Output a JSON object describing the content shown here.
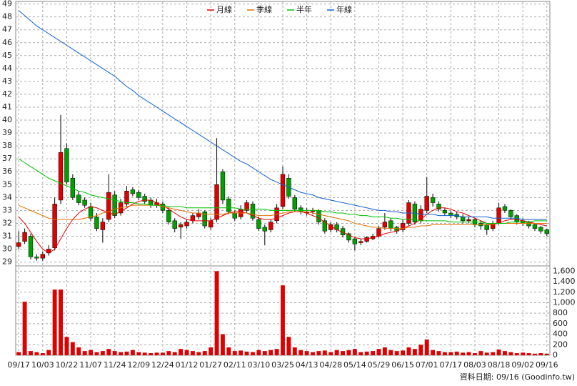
{
  "chart_data": [
    {
      "type": "candlestick",
      "legend": "top",
      "grid": true,
      "up_color": "#e00000",
      "down_color": "#00a000",
      "categories": [
        "09/17",
        null,
        null,
        null,
        "10/03",
        null,
        null,
        null,
        "10/22",
        null,
        null,
        null,
        "11/07",
        null,
        null,
        null,
        "11/24",
        null,
        null,
        null,
        "12/09",
        null,
        null,
        null,
        "12/24",
        null,
        null,
        null,
        "01/12",
        null,
        null,
        null,
        "01/27",
        null,
        null,
        null,
        "02/11",
        null,
        null,
        null,
        "03/10",
        null,
        null,
        null,
        "03/25",
        null,
        null,
        null,
        "04/13",
        null,
        null,
        null,
        "04/28",
        null,
        null,
        null,
        "05/14",
        null,
        null,
        null,
        "05/29",
        null,
        null,
        null,
        "06/15",
        null,
        null,
        null,
        "07/01",
        null,
        null,
        null,
        "07/17",
        null,
        null,
        null,
        "08/03",
        null,
        null,
        null,
        "08/18",
        null,
        null,
        null,
        "09/02",
        null,
        null,
        null,
        "09/16"
      ],
      "open": [
        30.2,
        30.6,
        31.0,
        29.4,
        29.3,
        29.7,
        30.1,
        33.8,
        37.8,
        35.5,
        34.2,
        33.8,
        33.3,
        32.5,
        31.5,
        32.3,
        34.2,
        32.8,
        33.5,
        34.6,
        34.4,
        34.1,
        33.8,
        33.4,
        33.5,
        33.0,
        32.2,
        31.7,
        31.8,
        32.2,
        32.5,
        32.9,
        31.7,
        32.3,
        36.0,
        33.9,
        32.8,
        32.5,
        33.0,
        33.5,
        32.3,
        31.7,
        31.5,
        32.2,
        33.3,
        35.5,
        34.0,
        33.2,
        32.8,
        32.9,
        33.0,
        32.2,
        31.5,
        31.9,
        31.6,
        31.2,
        30.8,
        30.5,
        30.6,
        30.8,
        31.0,
        31.7,
        32.2,
        31.7,
        31.5,
        32.0,
        33.5,
        32.2,
        33.0,
        34.0,
        33.5,
        33.0,
        32.8,
        32.7,
        32.5,
        32.2,
        32.3,
        32.0,
        31.9,
        31.6,
        32.0,
        33.3,
        33.0,
        32.6,
        32.2,
        32.1,
        31.9,
        31.7,
        31.5
      ],
      "high": [
        31.4,
        31.6,
        31.2,
        29.6,
        29.8,
        30.3,
        34.0,
        40.4,
        38.2,
        35.8,
        34.5,
        34.0,
        33.6,
        32.8,
        32.4,
        35.8,
        34.5,
        33.9,
        34.9,
        34.8,
        34.6,
        34.3,
        34.0,
        33.9,
        33.7,
        33.2,
        32.4,
        32.1,
        32.3,
        32.8,
        33.1,
        33.0,
        32.4,
        38.6,
        36.2,
        34.1,
        33.0,
        33.4,
        33.8,
        33.7,
        32.5,
        31.9,
        32.3,
        33.5,
        36.4,
        35.8,
        34.2,
        33.4,
        33.2,
        33.2,
        33.1,
        32.4,
        32.1,
        32.1,
        31.8,
        31.3,
        30.9,
        30.8,
        31.0,
        31.2,
        31.8,
        32.8,
        32.4,
        31.8,
        32.3,
        33.8,
        33.7,
        33.4,
        35.6,
        34.3,
        33.7,
        33.2,
        33.0,
        32.9,
        32.7,
        32.5,
        32.4,
        32.2,
        32.0,
        32.2,
        33.6,
        33.5,
        33.1,
        32.7,
        32.4,
        32.2,
        32.0,
        31.8,
        31.6
      ],
      "low": [
        30.0,
        30.4,
        29.2,
        29.1,
        29.1,
        29.5,
        29.9,
        33.5,
        35.0,
        33.8,
        33.4,
        33.2,
        32.2,
        31.4,
        30.5,
        32.1,
        32.4,
        32.6,
        33.3,
        34.1,
        33.8,
        33.5,
        33.2,
        33.2,
        32.8,
        31.9,
        31.3,
        30.8,
        31.6,
        32.0,
        32.3,
        31.6,
        31.5,
        32.1,
        33.5,
        32.7,
        32.2,
        32.3,
        32.8,
        32.2,
        31.4,
        30.3,
        31.3,
        32.0,
        33.1,
        33.9,
        32.9,
        32.7,
        32.6,
        32.7,
        31.9,
        31.2,
        31.3,
        31.3,
        30.9,
        30.5,
        29.9,
        30.3,
        30.5,
        30.7,
        30.9,
        31.5,
        31.4,
        31.2,
        31.3,
        31.8,
        31.9,
        32.0,
        32.8,
        33.3,
        32.9,
        32.6,
        32.4,
        32.3,
        32.0,
        32.0,
        31.7,
        31.5,
        31.1,
        31.4,
        31.9,
        32.8,
        32.3,
        31.9,
        31.8,
        31.6,
        31.4,
        31.2,
        31.0
      ],
      "close": [
        30.5,
        31.3,
        29.4,
        29.3,
        29.6,
        30.0,
        33.5,
        37.5,
        35.2,
        34.0,
        33.6,
        33.4,
        32.4,
        31.6,
        32.1,
        34.4,
        32.6,
        33.6,
        34.5,
        34.3,
        34.0,
        33.7,
        33.4,
        33.6,
        33.0,
        32.1,
        31.6,
        31.9,
        32.1,
        32.6,
        32.8,
        31.8,
        32.2,
        35.0,
        33.8,
        32.9,
        32.4,
        33.1,
        33.6,
        32.4,
        31.6,
        31.4,
        32.1,
        33.2,
        35.8,
        34.1,
        33.1,
        32.9,
        32.9,
        33.0,
        32.1,
        31.4,
        31.9,
        31.5,
        31.1,
        30.7,
        30.4,
        30.6,
        30.9,
        31.0,
        31.6,
        32.1,
        31.6,
        31.4,
        32.0,
        33.6,
        32.1,
        33.1,
        34.1,
        33.6,
        33.1,
        32.8,
        32.6,
        32.5,
        32.2,
        32.3,
        31.9,
        31.8,
        31.5,
        32.0,
        33.2,
        33.0,
        32.5,
        32.1,
        32.0,
        31.8,
        31.6,
        31.4,
        31.2
      ],
      "series": [
        {
          "name": "月線",
          "color": "#e00000",
          "values": [
            32.5,
            32.0,
            31.3,
            30.6,
            30.0,
            29.7,
            30.0,
            30.8,
            31.6,
            32.3,
            32.8,
            33.1,
            33.3,
            33.2,
            33.0,
            32.8,
            32.7,
            32.9,
            33.2,
            33.5,
            33.7,
            33.8,
            33.8,
            33.6,
            33.4,
            33.1,
            32.8,
            32.5,
            32.3,
            32.2,
            32.2,
            32.2,
            32.2,
            32.4,
            32.6,
            32.8,
            32.9,
            32.9,
            32.8,
            32.6,
            32.4,
            32.3,
            32.3,
            32.4,
            32.6,
            32.8,
            32.9,
            32.9,
            32.8,
            32.6,
            32.4,
            32.1,
            31.8,
            31.5,
            31.3,
            31.1,
            30.9,
            30.8,
            30.8,
            30.9,
            31.0,
            31.2,
            31.3,
            31.4,
            31.6,
            31.8,
            32.0,
            32.3,
            32.7,
            33.0,
            33.2,
            33.2,
            33.1,
            32.9,
            32.8,
            32.6,
            32.4,
            32.2,
            32.0,
            31.9,
            32.0,
            32.2,
            32.3,
            32.3,
            32.2,
            32.1,
            32.0,
            31.9,
            31.8
          ]
        },
        {
          "name": "季線",
          "color": "#e07000",
          "values": [
            33.4,
            33.2,
            33.0,
            32.8,
            32.6,
            32.4,
            32.3,
            32.3,
            32.3,
            32.3,
            32.3,
            32.4,
            32.5,
            32.6,
            32.8,
            32.9,
            33.1,
            33.2,
            33.3,
            33.4,
            33.4,
            33.4,
            33.4,
            33.4,
            33.3,
            33.2,
            33.1,
            33.0,
            32.9,
            32.8,
            32.8,
            32.7,
            32.7,
            32.7,
            32.7,
            32.8,
            32.8,
            32.8,
            32.8,
            32.7,
            32.6,
            32.6,
            32.6,
            32.7,
            32.8,
            32.9,
            32.9,
            32.9,
            32.9,
            32.8,
            32.7,
            32.6,
            32.5,
            32.4,
            32.3,
            32.2,
            32.0,
            31.9,
            31.8,
            31.7,
            31.7,
            31.6,
            31.6,
            31.6,
            31.6,
            31.7,
            31.7,
            31.8,
            31.8,
            31.9,
            31.9,
            31.9,
            31.9,
            31.9,
            31.9,
            31.9,
            31.9,
            31.9,
            31.9,
            31.9,
            32.0,
            32.0,
            32.0,
            32.0,
            32.0,
            32.0,
            32.0,
            32.0,
            32.0
          ]
        },
        {
          "name": "半年",
          "color": "#00c000",
          "values": [
            37.0,
            36.7,
            36.4,
            36.1,
            35.8,
            35.5,
            35.3,
            35.1,
            34.9,
            34.7,
            34.5,
            34.4,
            34.2,
            34.1,
            34.0,
            33.9,
            33.8,
            33.7,
            33.6,
            33.6,
            33.5,
            33.5,
            33.4,
            33.4,
            33.4,
            33.3,
            33.3,
            33.3,
            33.2,
            33.2,
            33.2,
            33.2,
            33.2,
            33.2,
            33.2,
            33.2,
            33.2,
            33.1,
            33.1,
            33.1,
            33.1,
            33.1,
            33.0,
            33.0,
            33.0,
            33.0,
            33.0,
            33.0,
            33.0,
            33.0,
            33.0,
            32.9,
            32.9,
            32.8,
            32.8,
            32.7,
            32.7,
            32.6,
            32.6,
            32.5,
            32.5,
            32.5,
            32.4,
            32.4,
            32.3,
            32.3,
            32.3,
            32.2,
            32.2,
            32.2,
            32.2,
            32.2,
            32.1,
            32.1,
            32.1,
            32.1,
            32.1,
            32.1,
            32.0,
            32.0,
            32.0,
            32.0,
            32.1,
            32.1,
            32.1,
            32.1,
            32.2,
            32.2,
            32.2
          ]
        },
        {
          "name": "年線",
          "color": "#1060d0",
          "values": [
            48.5,
            48.1,
            47.7,
            47.3,
            47.0,
            46.7,
            46.4,
            46.1,
            45.8,
            45.5,
            45.2,
            44.9,
            44.6,
            44.3,
            44.0,
            43.7,
            43.4,
            43.0,
            42.6,
            42.3,
            41.9,
            41.6,
            41.3,
            41.0,
            40.7,
            40.4,
            40.1,
            39.8,
            39.5,
            39.2,
            38.9,
            38.6,
            38.3,
            38.0,
            37.7,
            37.4,
            37.1,
            36.8,
            36.6,
            36.3,
            36.0,
            35.7,
            35.4,
            35.2,
            35.0,
            34.8,
            34.6,
            34.4,
            34.3,
            34.2,
            34.0,
            33.9,
            33.8,
            33.7,
            33.6,
            33.5,
            33.4,
            33.3,
            33.2,
            33.1,
            33.0,
            33.0,
            32.9,
            32.9,
            32.8,
            32.8,
            32.8,
            32.7,
            32.7,
            32.7,
            32.6,
            32.6,
            32.6,
            32.6,
            32.5,
            32.5,
            32.5,
            32.5,
            32.5,
            32.4,
            32.4,
            32.4,
            32.4,
            32.4,
            32.3,
            32.3,
            32.3,
            32.3,
            32.3
          ]
        }
      ],
      "ylim": [
        28.7,
        49.2
      ],
      "yticks": [
        29,
        30,
        31,
        32,
        33,
        34,
        35,
        36,
        37,
        38,
        39,
        40,
        41,
        42,
        43,
        44,
        45,
        46,
        47,
        48,
        49
      ]
    },
    {
      "type": "bar",
      "grid": true,
      "color": "#e00000",
      "source": "資料日期: 09/16 (Goodinfo.tw)",
      "values": [
        60,
        1020,
        80,
        60,
        40,
        100,
        1250,
        1250,
        350,
        250,
        150,
        80,
        100,
        60,
        80,
        120,
        80,
        60,
        70,
        100,
        60,
        50,
        40,
        50,
        50,
        80,
        60,
        120,
        100,
        80,
        60,
        80,
        150,
        1600,
        400,
        150,
        80,
        90,
        70,
        60,
        100,
        80,
        100,
        120,
        1330,
        350,
        150,
        100,
        80,
        60,
        80,
        90,
        60,
        100,
        80,
        100,
        120,
        60,
        70,
        80,
        120,
        150,
        100,
        80,
        90,
        150,
        120,
        200,
        300,
        100,
        80,
        60,
        60,
        70,
        50,
        60,
        40,
        80,
        50,
        60,
        110,
        80,
        60,
        40,
        50,
        40,
        30,
        40,
        30
      ],
      "ylim": [
        0,
        1700
      ],
      "yticks": [
        0,
        200,
        400,
        600,
        800,
        {
          "value": 1000,
          "label": "1,000"
        },
        {
          "value": 1200,
          "label": "1,200"
        },
        {
          "value": 1400,
          "label": "1,400"
        },
        {
          "value": 1600,
          "label": "1,600"
        }
      ]
    }
  ]
}
